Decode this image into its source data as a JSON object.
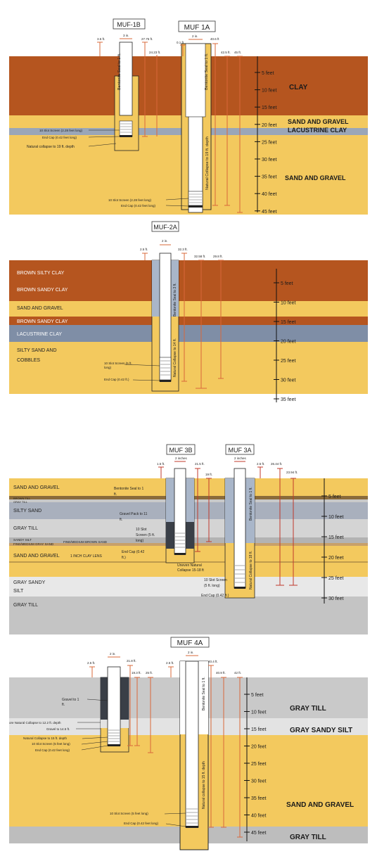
{
  "colors": {
    "clay": "#b5551f",
    "sand": "#f3c95e",
    "lacustrine": "#9aa6b8",
    "till": "#c9c9c9",
    "sandy_silt": "#e3e3e3",
    "seal": "#a9b6c9",
    "measure": "#d9683a",
    "red": "#c0392b",
    "gravel_pack": "#3a3f47"
  },
  "panel1": {
    "title_left": "MUF-1B",
    "title_right": "MUF 1A",
    "dims": {
      "a": "3.5 ft.",
      "b": "3 in.",
      "c": "27.75 ft.",
      "d": "24.23 ft.",
      "e": "2 in.",
      "f": "0.1 ft.",
      "g": "40.6 ft",
      "h": "42.5 ft.",
      "i": "45 ft."
    },
    "strata": {
      "clay": "CLAY",
      "sand_gravel_1": "SAND AND GRAVEL",
      "lacustrine": "LACUSTRINE CLAY",
      "sand_gravel_2": "SAND AND GRAVEL"
    },
    "scale": [
      "5 feet",
      "10 feet",
      "15 feet",
      "20 feet",
      "25 feet",
      "30 feet",
      "35 feet",
      "40 feet",
      "45 feet"
    ],
    "notes": {
      "slot_1b": "10 Slot Screen (2.28 feet long)",
      "cap_1b": "End Cap (0.42 feet long)",
      "collapse_1b": "Natural collapse to 19 ft. depth",
      "slot_1a": "10 Slot Screen (2.28 feet long)",
      "cap_1a": "End Cap (0.42 feet long)",
      "seal_1b": "Bentonite Seal to 1 ft.",
      "seal_1a": "Bentonite Seal to 1 ft.",
      "collapse_1a": "Natural Collapse to 19 ft. depth"
    }
  },
  "panel2": {
    "title": "MUF-2A",
    "dims": {
      "a": "2.5 ft.",
      "b": "2 in.",
      "c": "32.3 ft.",
      "d": "32.58 ft.",
      "e": "29.8 ft."
    },
    "strata": {
      "s1": "BROWN SILTY CLAY",
      "s2": "BROWN SANDY CLAY",
      "s3": "SAND AND GRAVEL",
      "s4": "BROWN SANDY CLAY",
      "s5": "LACUSTRINE CLAY",
      "s6a": "SILTY SAND AND",
      "s6b": "COBBLES"
    },
    "scale": [
      "5 feet",
      "10 feet",
      "15 feet",
      "20 feet",
      "25 feet",
      "30 feet",
      "35 feet"
    ],
    "notes": {
      "slot": "10 Slot Screen (5 ft.",
      "slot2": "long)",
      "cap": "End Cap (0.42 ft.)",
      "seal": "Bentonite Seal to 3 ft.",
      "collapse": "Natural Collapse to 14 ft."
    }
  },
  "panel3": {
    "title_left": "MUF 3B",
    "title_right": "MUF 3A",
    "dims": {
      "a": "2 inches",
      "b": "1.5 ft.",
      "c": "21.5 ft.",
      "d": "19 ft.",
      "e": "2 inches",
      "f": "2.5 ft.",
      "g": "26.44 ft.",
      "h": "23.94 ft."
    },
    "strata": {
      "s1": "SAND AND GRAVEL",
      "s2": "BROWN TILL",
      "s3": "GRAY TILL",
      "s4": "SILTY SAND",
      "s5": "GRAY TILL",
      "s6": "SANDY SILT",
      "s7": "FINE/MEDIUM GRAY SAND",
      "s8": "FINE/MEDIUM BROWN SAND",
      "s9": "SAND AND GRAVEL",
      "s10": "1 INCH CLAY LENS",
      "s11a": "GRAY SANDY",
      "s11b": "SILT",
      "s12": "GRAY TILL"
    },
    "scale": [
      "5 feet",
      "10 feet",
      "15 feet",
      "20 feet",
      "25 feet",
      "30 feet"
    ],
    "notes": {
      "seal": "Bentonite Seal to 1",
      "seal2": "ft.",
      "gravel": "Gravel Pack to 11",
      "gravel2": "ft.",
      "slot": "10 Slot",
      "slot2": "Screen (5 ft.",
      "slot3": "long)",
      "cap": "End Cap (0.42",
      "cap2": "ft.)",
      "uneven": "Uneven Natural",
      "uneven2": "Collapse 15-18 ft",
      "slot_3a": "10 Slot Screen",
      "slot_3a2": "(5 ft. long)",
      "cap_3a": "End Cap (0.42 ft.)",
      "seal_3a": "Bentonite Seal to 1 ft.",
      "collapse_3a": "Natural Collapse to 18 ft."
    }
  },
  "panel4": {
    "title": "MUF 4A",
    "dims": {
      "a": "2 in.",
      "b": "2.5 ft.",
      "c": "21.8 ft.",
      "d": "19.3 ft.",
      "e": "25 ft.",
      "f": "2 in.",
      "g": "2.5 ft.",
      "h": "40.4 ft.",
      "i": "40.9 ft.",
      "j": "42 ft."
    },
    "strata": {
      "s1": "GRAY TILL",
      "s2": "GRAY SANDY SILT",
      "s3": "SAND AND GRAVEL",
      "s4": "GRAY TILL"
    },
    "scale": [
      "5 feet",
      "10 feet",
      "15 feet",
      "20 feet",
      "25 feet",
      "30 feet",
      "35 feet",
      "40 feet",
      "45 feet"
    ],
    "notes": {
      "gravel": "Gravel to 1",
      "gravel2": "ft.",
      "collapse_left": "ore Natural Collapse to 12.2 ft. depth",
      "gravel145": "Gravel to 14.5 ft.",
      "collapse15": "Natural Collapse to 15 ft. depth",
      "slot": "10 Slot Screen (5 feet long)",
      "cap": "End Cap (0.42 feet long)",
      "slot_r": "10 Slot Screen (5 feet long)",
      "cap_r": "End Cap (0.42 feet long)",
      "seal_r": "Bentonite Seal to 1 ft.",
      "collapse_r": "Natural collapse to 15 ft. depth"
    }
  }
}
